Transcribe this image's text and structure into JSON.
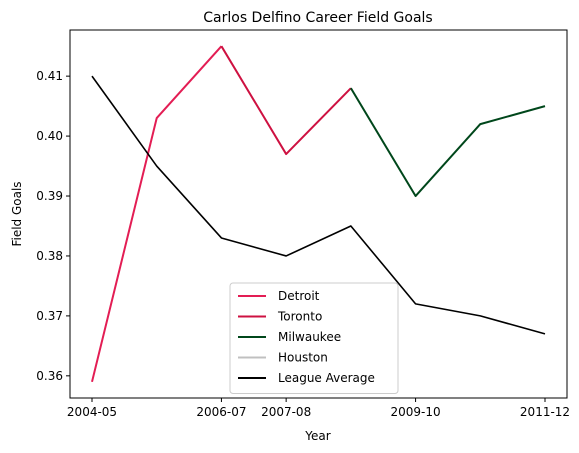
{
  "chart_data": {
    "type": "line",
    "title": "Carlos Delfino Career Field Goals",
    "xlabel": "Year",
    "ylabel": "Field Goals",
    "x_tick_labels": [
      "2004-05",
      "2006-07",
      "2007-08",
      "2009-10",
      "2011-12"
    ],
    "y_ticks": [
      0.36,
      0.37,
      0.38,
      0.39,
      0.4,
      0.41
    ],
    "y_tick_labels": [
      "0.36",
      "0.37",
      "0.38",
      "0.39",
      "0.40",
      "0.41"
    ],
    "ylim": [
      0.3563,
      0.4177
    ],
    "grid": false,
    "legend_position": "bottom-center",
    "seasons": [
      "2004-05",
      "2005-06",
      "2006-07",
      "2007-08",
      "2008-09",
      "2009-10",
      "2010-11",
      "2011-12"
    ],
    "series": [
      {
        "name": "Detroit",
        "color": "#e31d54",
        "x": [
          "2004-05",
          "2005-06",
          "2006-07"
        ],
        "values": [
          0.359,
          0.403,
          0.415
        ]
      },
      {
        "name": "Toronto",
        "color": "#ce1141",
        "x": [
          "2006-07",
          "2007-08",
          "2008-09"
        ],
        "values": [
          0.415,
          0.397,
          0.408
        ]
      },
      {
        "name": "Milwaukee",
        "color": "#00471b",
        "x": [
          "2008-09",
          "2009-10",
          "2010-11",
          "2011-12"
        ],
        "values": [
          0.408,
          0.39,
          0.402,
          0.405
        ]
      },
      {
        "name": "Houston",
        "color": "#c0c0c0",
        "x": [],
        "values": []
      },
      {
        "name": "League Average",
        "color": "#000000",
        "x": [
          "2004-05",
          "2005-06",
          "2006-07",
          "2007-08",
          "2008-09",
          "2009-10",
          "2010-11",
          "2011-12"
        ],
        "values": [
          0.41,
          0.395,
          0.383,
          0.38,
          0.385,
          0.372,
          0.37,
          0.367
        ]
      }
    ]
  }
}
